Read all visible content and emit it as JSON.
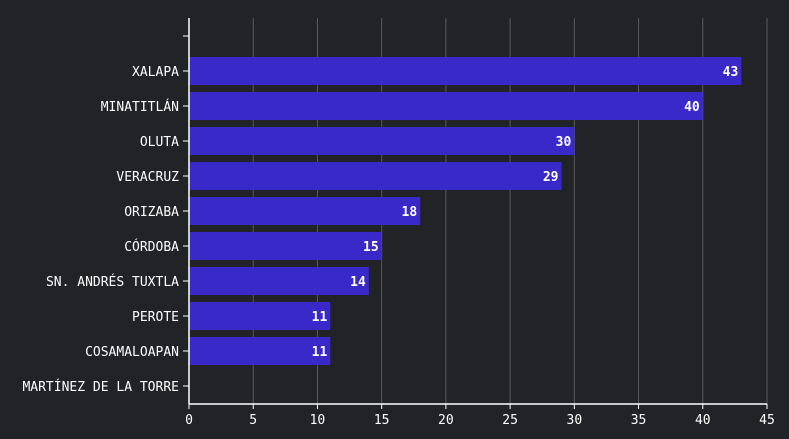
{
  "chart_data": {
    "type": "bar",
    "orientation": "horizontal",
    "categories": [
      "",
      "XALAPA",
      "MINATITLÁN",
      "OLUTA",
      "VERACRUZ",
      "ORIZABA",
      "CÓRDOBA",
      "SN. ANDRÉS TUXTLA",
      "PEROTE",
      "COSAMALOAPAN",
      "MARTÍNEZ DE LA TORRE"
    ],
    "values": [
      null,
      43,
      40,
      30,
      29,
      18,
      15,
      14,
      11,
      11,
      null
    ],
    "xlim": [
      0,
      45
    ],
    "xticks": [
      0,
      5,
      10,
      15,
      20,
      25,
      30,
      35,
      40,
      45
    ],
    "grid": true,
    "data_labels": true,
    "colors": {
      "background": "#222327",
      "bar": "#3a29c9",
      "grid": "#5a5b60",
      "axis": "#ffffff",
      "text": "#ffffff"
    }
  }
}
